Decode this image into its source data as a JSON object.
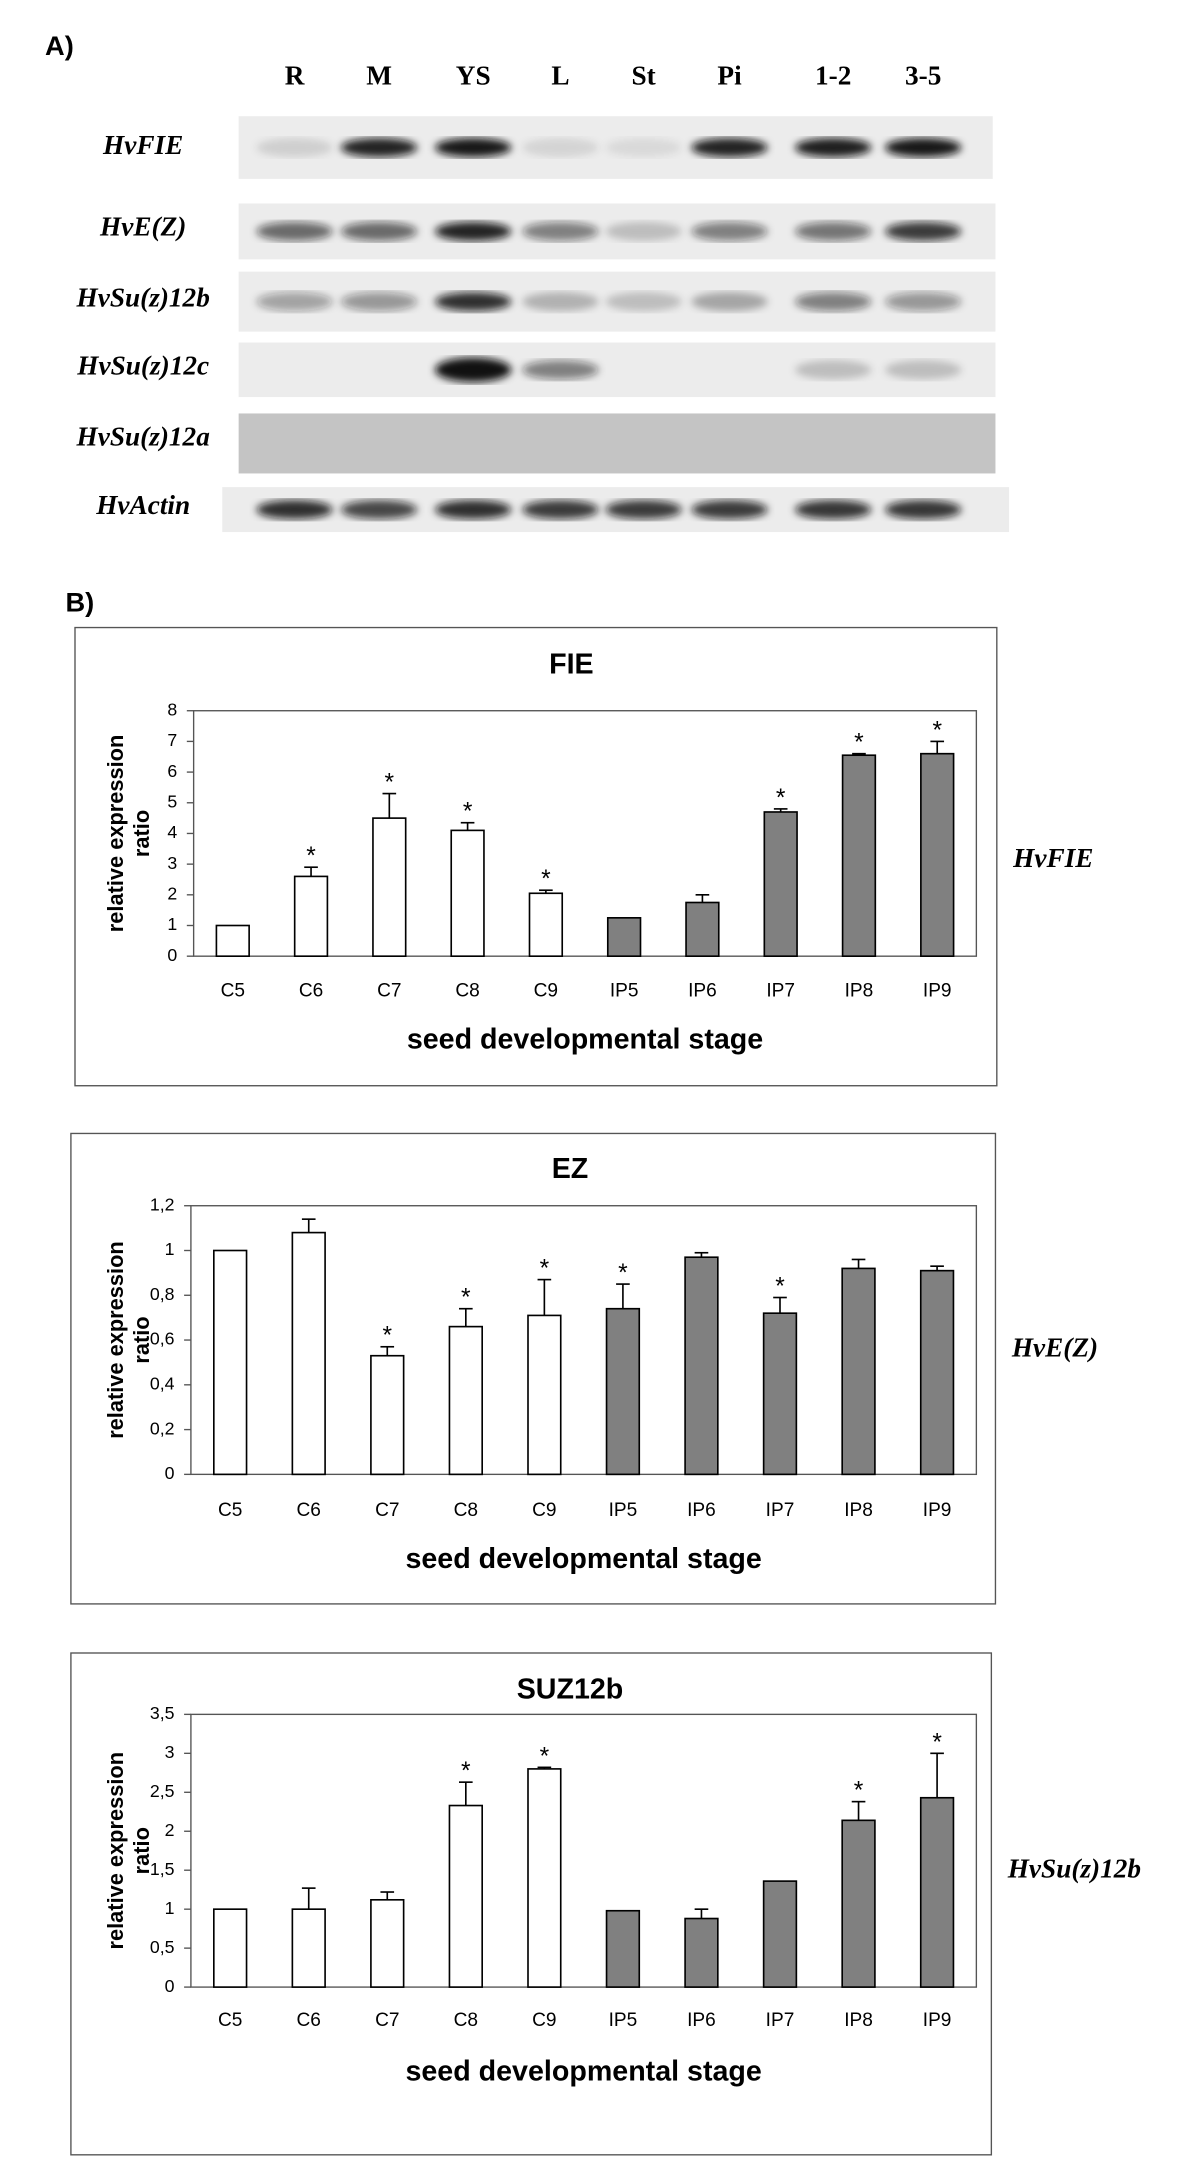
{
  "panel_a": {
    "label": "A)",
    "lanes": [
      "R",
      "M",
      "YS",
      "L",
      "St",
      "Pi",
      "1-2",
      "3-5"
    ],
    "genes": [
      "HvFIE",
      "HvE(Z)",
      "HvSu(z)12b",
      "HvSu(z)12c",
      "HvSu(z)12a",
      "HvActin"
    ]
  },
  "panel_b_label": "B)",
  "chart_data": [
    {
      "type": "bar",
      "title": "FIE",
      "gene_label": "HvFIE",
      "y_label": [
        "relative expression",
        "ratio"
      ],
      "x_label": "seed developmental stage",
      "categories": [
        "C5",
        "C6",
        "C7",
        "C8",
        "C9",
        "IP5",
        "IP6",
        "IP7",
        "IP8",
        "IP9"
      ],
      "values": [
        1,
        2.6,
        4.5,
        4.1,
        2.05,
        1.25,
        1.75,
        4.7,
        6.55,
        6.6
      ],
      "errors": [
        0,
        0.3,
        0.8,
        0.25,
        0.1,
        0,
        0.25,
        0.1,
        0.05,
        0.4
      ],
      "asterisks": [
        null,
        "*",
        "*",
        "*",
        "*",
        null,
        null,
        "*",
        "*",
        "*"
      ],
      "colors": [
        "#ffffff",
        "#ffffff",
        "#ffffff",
        "#ffffff",
        "#ffffff",
        "#808080",
        "#808080",
        "#808080",
        "#808080",
        "#808080"
      ],
      "ylim": [
        0,
        8
      ],
      "yticks": [
        0,
        1,
        2,
        3,
        4,
        5,
        6,
        7,
        8
      ]
    },
    {
      "type": "bar",
      "title": "EZ",
      "gene_label": "HvE(Z)",
      "y_label": [
        "relative expression",
        "ratio"
      ],
      "x_label": "seed developmental stage",
      "categories": [
        "C5",
        "C6",
        "C7",
        "C8",
        "C9",
        "IP5",
        "IP6",
        "IP7",
        "IP8",
        "IP9"
      ],
      "values": [
        1,
        1.08,
        0.53,
        0.66,
        0.71,
        0.74,
        0.97,
        0.72,
        0.92,
        0.91
      ],
      "errors": [
        0,
        0.06,
        0.04,
        0.08,
        0.16,
        0.11,
        0.02,
        0.07,
        0.04,
        0.02
      ],
      "asterisks": [
        null,
        null,
        "*",
        "*",
        "*",
        "*",
        null,
        "*",
        null,
        null
      ],
      "colors": [
        "#ffffff",
        "#ffffff",
        "#ffffff",
        "#ffffff",
        "#ffffff",
        "#808080",
        "#808080",
        "#808080",
        "#808080",
        "#808080"
      ],
      "ylim": [
        0,
        1.2
      ],
      "yticks": [
        0,
        {
          "value": 0.2,
          "label": "0,2"
        },
        {
          "value": 0.4,
          "label": "0,4"
        },
        {
          "value": 0.6,
          "label": "0,6"
        },
        {
          "value": 0.8,
          "label": "0,8"
        },
        1,
        {
          "value": 1.2,
          "label": "1,2"
        }
      ]
    },
    {
      "type": "bar",
      "title": "SUZ12b",
      "gene_label": "HvSu(z)12b",
      "y_label": [
        "relative expression",
        "ratio"
      ],
      "x_label": "seed developmental stage",
      "categories": [
        "C5",
        "C6",
        "C7",
        "C8",
        "C9",
        "IP5",
        "IP6",
        "IP7",
        "IP8",
        "IP9"
      ],
      "values": [
        1,
        1,
        1.12,
        2.33,
        2.8,
        0.98,
        0.88,
        1.36,
        2.14,
        2.43
      ],
      "errors": [
        0,
        0.27,
        0.1,
        0.3,
        0.02,
        0,
        0.12,
        0,
        0.24,
        0.57
      ],
      "asterisks": [
        null,
        null,
        null,
        "*",
        "*",
        null,
        null,
        null,
        "*",
        "*"
      ],
      "colors": [
        "#ffffff",
        "#ffffff",
        "#ffffff",
        "#ffffff",
        "#ffffff",
        "#808080",
        "#808080",
        "#808080",
        "#808080",
        "#808080"
      ],
      "ylim": [
        0,
        3.5
      ],
      "yticks": [
        0,
        {
          "value": 0.5,
          "label": "0,5"
        },
        1,
        {
          "value": 1.5,
          "label": "1,5"
        },
        2,
        {
          "value": 2.5,
          "label": "2,5"
        },
        3,
        {
          "value": 3.5,
          "label": "3,5"
        }
      ]
    }
  ]
}
